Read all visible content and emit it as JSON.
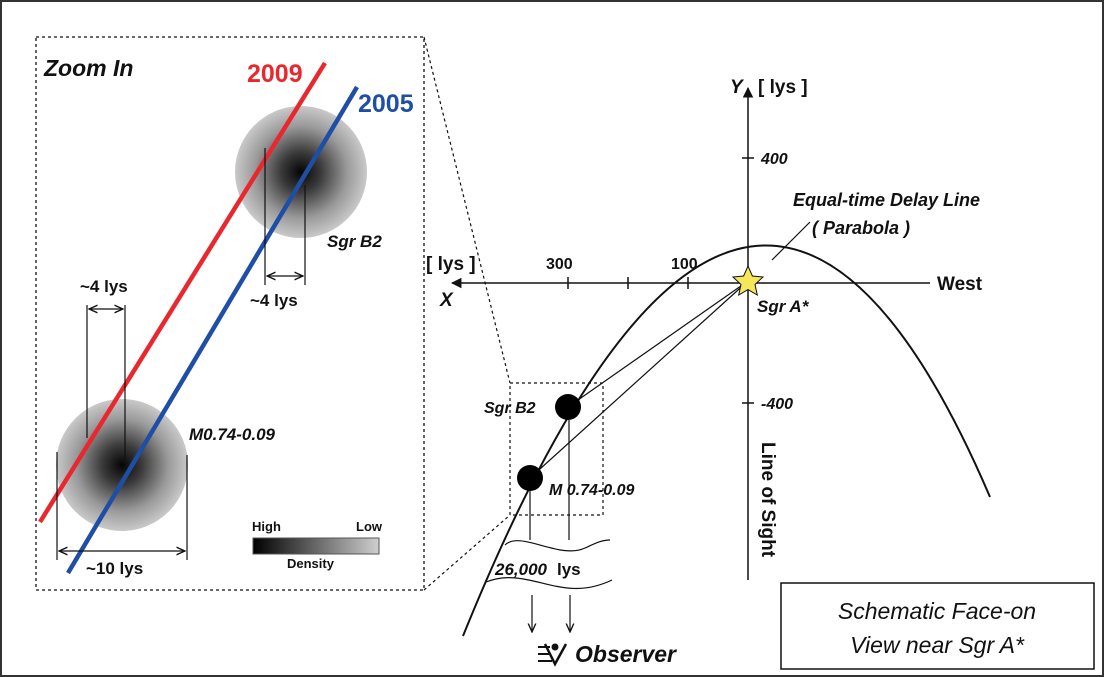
{
  "zoom": {
    "title": "Zoom In",
    "year_2009": "2009",
    "year_2005": "2005",
    "sgr_b2": "Sgr B2",
    "m074": "M0.74-0.09",
    "width_b2": "~4 lys",
    "width_m_top": "~4 lys",
    "width_m_bottom": "~10 lys",
    "density_high": "High",
    "density_low": "Low",
    "density_label": "Density",
    "color_2009": "#e8282e",
    "color_2005": "#1f4ea6"
  },
  "diagram": {
    "y_axis": "Y",
    "y_unit": "[ lys ]",
    "x_axis": "X",
    "x_unit": "[ lys ]",
    "tick_400": "400",
    "tick_neg400": "-400",
    "tick_300": "300",
    "tick_100": "100",
    "west": "West",
    "sgr_a": "Sgr A*",
    "delay_line_1": "Equal-time Delay Line",
    "delay_line_2": "( Parabola )",
    "sgr_b2": "Sgr B2",
    "m074": "M 0.74-0.09",
    "line_of_sight": "Line of Sight",
    "distance_value": "26,000",
    "distance_unit": "lys",
    "observer": "Observer",
    "star_color": "#f5e65a"
  },
  "caption": {
    "line1": "Schematic Face-on",
    "line2": "View near Sgr A*"
  }
}
